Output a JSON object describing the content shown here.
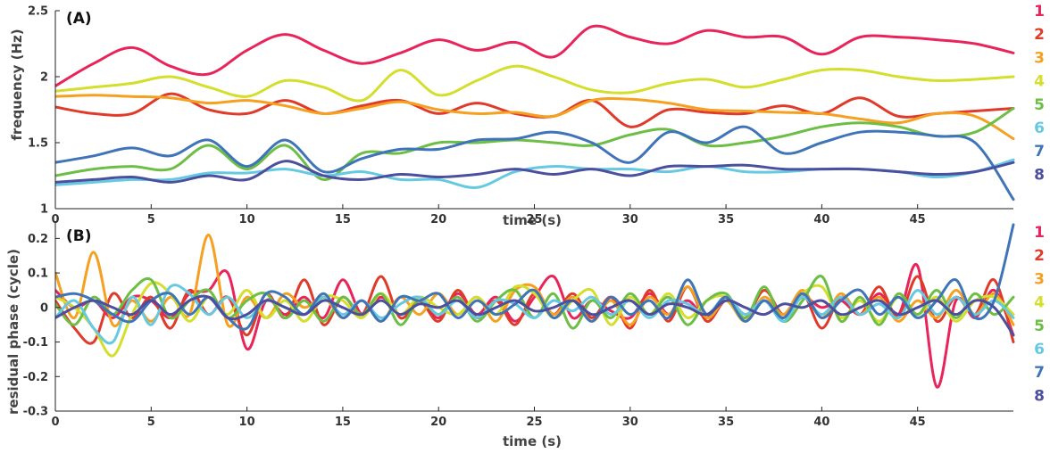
{
  "series_colors": [
    "#e8245a",
    "#e03a2a",
    "#f5a020",
    "#d4de2c",
    "#6cbe45",
    "#66c9e2",
    "#3f74b8",
    "#4c4e9e"
  ],
  "chart_data": [
    {
      "type": "line",
      "panel": "(A)",
      "xlabel": "time (s)",
      "ylabel": "frequency (Hz)",
      "xlim": [
        0,
        50
      ],
      "ylim": [
        1,
        2.5
      ],
      "xticks": [
        0,
        5,
        10,
        15,
        20,
        25,
        30,
        35,
        40,
        45
      ],
      "xtick_labels": [
        "0",
        "5",
        "10",
        "15",
        "20",
        "25",
        "30",
        "35",
        "40",
        "45"
      ],
      "yticks": [
        1,
        1.5,
        2,
        2.5
      ],
      "ytick_labels": [
        "1",
        "1.5",
        "2",
        "2.5"
      ],
      "legend": [
        "1",
        "2",
        "3",
        "4",
        "5",
        "6",
        "7",
        "8"
      ],
      "x": [
        0,
        2,
        4,
        6,
        8,
        10,
        12,
        14,
        16,
        18,
        20,
        22,
        24,
        26,
        28,
        30,
        32,
        34,
        36,
        38,
        40,
        42,
        44,
        46,
        48,
        50
      ],
      "series": [
        {
          "name": "1",
          "values": [
            1.93,
            2.1,
            2.22,
            2.08,
            2.02,
            2.2,
            2.32,
            2.2,
            2.1,
            2.18,
            2.28,
            2.2,
            2.26,
            2.15,
            2.38,
            2.3,
            2.25,
            2.35,
            2.3,
            2.3,
            2.17,
            2.3,
            2.3,
            2.28,
            2.25,
            2.18
          ]
        },
        {
          "name": "2",
          "values": [
            1.77,
            1.72,
            1.72,
            1.87,
            1.75,
            1.72,
            1.82,
            1.72,
            1.78,
            1.82,
            1.72,
            1.8,
            1.72,
            1.7,
            1.82,
            1.62,
            1.75,
            1.73,
            1.72,
            1.78,
            1.72,
            1.84,
            1.7,
            1.72,
            1.74,
            1.76
          ]
        },
        {
          "name": "3",
          "values": [
            1.85,
            1.86,
            1.85,
            1.84,
            1.8,
            1.82,
            1.78,
            1.72,
            1.76,
            1.81,
            1.75,
            1.72,
            1.73,
            1.7,
            1.82,
            1.83,
            1.8,
            1.75,
            1.74,
            1.73,
            1.72,
            1.68,
            1.65,
            1.72,
            1.7,
            1.53
          ]
        },
        {
          "name": "4",
          "values": [
            1.89,
            1.92,
            1.95,
            2.0,
            1.92,
            1.85,
            1.97,
            1.92,
            1.82,
            2.05,
            1.86,
            1.97,
            2.08,
            2.0,
            1.9,
            1.88,
            1.95,
            1.98,
            1.92,
            1.98,
            2.05,
            2.05,
            2.0,
            1.97,
            1.98,
            2.0
          ]
        },
        {
          "name": "5",
          "values": [
            1.25,
            1.3,
            1.32,
            1.3,
            1.48,
            1.3,
            1.48,
            1.22,
            1.42,
            1.42,
            1.5,
            1.5,
            1.52,
            1.5,
            1.48,
            1.56,
            1.6,
            1.48,
            1.5,
            1.55,
            1.62,
            1.65,
            1.62,
            1.55,
            1.58,
            1.76
          ]
        },
        {
          "name": "6",
          "values": [
            1.18,
            1.2,
            1.22,
            1.22,
            1.27,
            1.27,
            1.3,
            1.25,
            1.28,
            1.22,
            1.22,
            1.16,
            1.28,
            1.32,
            1.3,
            1.3,
            1.28,
            1.32,
            1.28,
            1.28,
            1.3,
            1.3,
            1.28,
            1.24,
            1.28,
            1.37
          ]
        },
        {
          "name": "7",
          "values": [
            1.35,
            1.4,
            1.46,
            1.4,
            1.52,
            1.32,
            1.52,
            1.28,
            1.38,
            1.45,
            1.45,
            1.52,
            1.53,
            1.58,
            1.5,
            1.35,
            1.58,
            1.5,
            1.62,
            1.42,
            1.5,
            1.58,
            1.58,
            1.55,
            1.5,
            1.07
          ]
        },
        {
          "name": "8",
          "values": [
            1.2,
            1.22,
            1.24,
            1.2,
            1.25,
            1.22,
            1.36,
            1.25,
            1.22,
            1.26,
            1.24,
            1.26,
            1.3,
            1.26,
            1.3,
            1.25,
            1.32,
            1.32,
            1.33,
            1.3,
            1.3,
            1.3,
            1.28,
            1.26,
            1.28,
            1.35
          ]
        }
      ]
    },
    {
      "type": "line",
      "panel": "(B)",
      "xlabel": "time (s)",
      "ylabel": "residual phase (cycle)",
      "xlim": [
        0,
        50
      ],
      "ylim": [
        -0.3,
        0.25
      ],
      "xticks": [
        0,
        5,
        10,
        15,
        20,
        25,
        30,
        35,
        40,
        45
      ],
      "xtick_labels": [
        "0",
        "5",
        "10",
        "15",
        "20",
        "25",
        "30",
        "35",
        "40",
        "45"
      ],
      "yticks": [
        -0.3,
        -0.2,
        -0.1,
        0,
        0.1,
        0.2
      ],
      "ytick_labels": [
        "-0.3",
        "-0.2",
        "-0.1",
        "0",
        "0.1",
        "0.2"
      ],
      "legend": [
        "1",
        "2",
        "3",
        "4",
        "5",
        "6",
        "7",
        "8"
      ],
      "x": [
        0,
        1,
        2,
        3,
        4,
        5,
        6,
        7,
        8,
        9,
        10,
        11,
        12,
        13,
        14,
        15,
        16,
        17,
        18,
        19,
        20,
        21,
        22,
        23,
        24,
        25,
        26,
        27,
        28,
        29,
        30,
        31,
        32,
        33,
        34,
        35,
        36,
        37,
        38,
        39,
        40,
        41,
        42,
        43,
        44,
        45,
        46,
        47,
        48,
        49,
        50
      ],
      "series": [
        {
          "name": "1",
          "values": [
            0.05,
            0.0,
            0.02,
            -0.03,
            0.03,
            0.02,
            -0.03,
            0.04,
            0.05,
            0.1,
            -0.12,
            0.02,
            -0.02,
            0.03,
            -0.03,
            0.08,
            -0.02,
            0.03,
            -0.02,
            0.02,
            -0.03,
            0.04,
            -0.02,
            0.03,
            -0.04,
            0.03,
            0.09,
            -0.03,
            0.02,
            -0.01,
            -0.03,
            0.04,
            -0.02,
            0.02,
            -0.03,
            0.03,
            -0.02,
            0.02,
            -0.03,
            0.03,
            0.0,
            0.02,
            -0.02,
            0.04,
            -0.02,
            0.12,
            -0.23,
            0.02,
            -0.03,
            0.05,
            -0.08
          ]
        },
        {
          "name": "2",
          "values": [
            0.02,
            -0.06,
            -0.1,
            0.04,
            -0.03,
            0.03,
            -0.06,
            0.05,
            -0.02,
            0.03,
            -0.08,
            0.04,
            -0.03,
            0.08,
            -0.05,
            0.03,
            -0.02,
            0.09,
            -0.03,
            0.02,
            -0.04,
            0.05,
            -0.03,
            0.02,
            -0.05,
            0.04,
            -0.02,
            0.04,
            -0.03,
            0.03,
            -0.06,
            0.05,
            -0.04,
            0.06,
            -0.04,
            0.02,
            -0.03,
            0.05,
            -0.02,
            0.04,
            -0.06,
            0.03,
            -0.02,
            0.06,
            -0.03,
            0.09,
            -0.04,
            0.03,
            -0.02,
            0.08,
            -0.1
          ]
        },
        {
          "name": "3",
          "values": [
            0.1,
            -0.03,
            0.16,
            -0.05,
            0.02,
            -0.04,
            0.03,
            -0.02,
            0.21,
            -0.05,
            0.03,
            -0.03,
            0.04,
            0.0,
            0.03,
            -0.03,
            0.02,
            -0.04,
            0.03,
            -0.02,
            0.04,
            -0.02,
            0.03,
            -0.04,
            0.05,
            0.06,
            -0.02,
            0.03,
            -0.04,
            0.02,
            -0.05,
            0.03,
            -0.02,
            0.06,
            -0.03,
            0.02,
            -0.04,
            0.03,
            -0.02,
            0.05,
            -0.03,
            0.04,
            -0.02,
            0.03,
            -0.04,
            0.02,
            -0.03,
            0.05,
            -0.02,
            0.04,
            -0.05
          ]
        },
        {
          "name": "4",
          "values": [
            0.03,
            0.0,
            -0.06,
            -0.14,
            -0.02,
            0.07,
            0.04,
            -0.04,
            0.03,
            -0.02,
            0.05,
            -0.03,
            0.02,
            -0.04,
            0.03,
            0.02,
            -0.03,
            0.04,
            -0.02,
            0.03,
            0.0,
            -0.02,
            0.03,
            -0.02,
            0.06,
            0.04,
            -0.03,
            0.02,
            0.05,
            -0.05,
            0.03,
            -0.02,
            0.04,
            -0.03,
            0.02,
            0.03,
            -0.04,
            0.02,
            -0.03,
            0.04,
            0.06,
            -0.03,
            0.02,
            -0.04,
            0.03,
            -0.02,
            0.03,
            -0.04,
            0.02,
            0.03,
            -0.02
          ]
        },
        {
          "name": "5",
          "values": [
            0.01,
            -0.05,
            0.03,
            -0.02,
            0.05,
            0.08,
            -0.03,
            0.02,
            0.05,
            -0.03,
            0.02,
            0.04,
            -0.03,
            0.02,
            -0.04,
            0.03,
            -0.02,
            0.04,
            -0.05,
            0.02,
            -0.02,
            0.03,
            -0.04,
            0.02,
            0.05,
            -0.03,
            0.04,
            -0.06,
            0.02,
            -0.03,
            0.04,
            -0.02,
            0.03,
            -0.05,
            0.02,
            0.04,
            -0.03,
            0.06,
            -0.04,
            0.02,
            0.09,
            -0.04,
            0.03,
            -0.05,
            0.04,
            -0.02,
            0.05,
            -0.03,
            0.04,
            -0.02,
            0.03
          ]
        },
        {
          "name": "6",
          "values": [
            -0.03,
            0.02,
            -0.06,
            -0.1,
            0.03,
            -0.05,
            0.06,
            0.04,
            -0.02,
            0.03,
            -0.03,
            0.02,
            0.0,
            -0.02,
            0.03,
            -0.02,
            0.02,
            -0.03,
            0.01,
            0.03,
            -0.02,
            0.02,
            -0.03,
            0.02,
            0.01,
            -0.03,
            0.02,
            -0.01,
            0.03,
            -0.02,
            0.02,
            -0.03,
            0.02,
            0.01,
            -0.02,
            0.03,
            -0.02,
            0.02,
            -0.04,
            0.03,
            -0.02,
            0.03,
            -0.02,
            0.01,
            -0.03,
            0.05,
            -0.02,
            0.03,
            -0.02,
            0.02,
            -0.03
          ]
        },
        {
          "name": "7",
          "values": [
            0.03,
            0.04,
            0.02,
            -0.02,
            -0.04,
            0.02,
            0.04,
            -0.02,
            0.03,
            -0.03,
            -0.06,
            0.04,
            0.03,
            -0.02,
            0.04,
            -0.03,
            0.02,
            -0.04,
            0.03,
            0.02,
            0.04,
            -0.03,
            0.02,
            -0.02,
            0.01,
            0.05,
            -0.03,
            0.02,
            -0.04,
            0.03,
            -0.02,
            0.02,
            -0.03,
            0.08,
            -0.02,
            0.03,
            -0.04,
            0.02,
            -0.03,
            0.04,
            -0.03,
            0.02,
            0.05,
            -0.02,
            0.03,
            -0.03,
            0.02,
            0.08,
            -0.03,
            0.02,
            0.24
          ]
        },
        {
          "name": "8",
          "values": [
            -0.03,
            0.0,
            0.02,
            0.0,
            -0.02,
            0.02,
            -0.02,
            0.02,
            0.03,
            -0.03,
            -0.02,
            0.02,
            0.0,
            -0.02,
            0.02,
            0.0,
            -0.02,
            0.02,
            -0.02,
            0.01,
            0.0,
            0.02,
            -0.02,
            0.0,
            0.02,
            -0.01,
            0.0,
            0.02,
            -0.02,
            0.0,
            0.02,
            -0.02,
            0.01,
            0.0,
            -0.02,
            0.02,
            0.0,
            -0.02,
            0.01,
            0.0,
            0.02,
            -0.02,
            0.0,
            0.02,
            -0.02,
            0.0,
            0.02,
            -0.02,
            0.02,
            0.0,
            -0.08
          ]
        }
      ]
    }
  ]
}
